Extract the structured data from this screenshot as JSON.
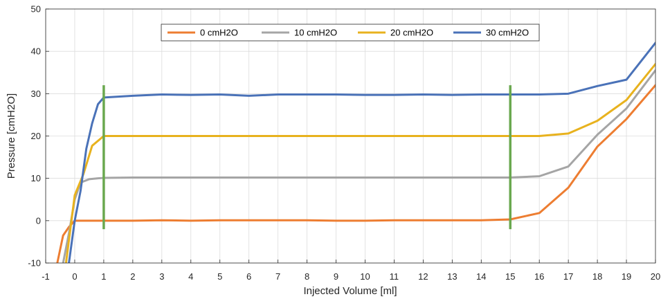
{
  "chart_data": {
    "type": "line",
    "title": "",
    "xlabel": "Injected Volume [ml]",
    "ylabel": "Pressure [cmH2O]",
    "xlim": [
      -1,
      20
    ],
    "ylim": [
      -10,
      50
    ],
    "xticks": [
      -1,
      0,
      1,
      2,
      3,
      4,
      5,
      6,
      7,
      8,
      9,
      10,
      11,
      12,
      13,
      14,
      15,
      16,
      17,
      18,
      19,
      20
    ],
    "yticks": [
      -10,
      0,
      10,
      20,
      30,
      40,
      50
    ],
    "xtick_labels": [
      "-1",
      "0",
      "1",
      "2",
      "3",
      "4",
      "5",
      "6",
      "7",
      "8",
      "9",
      "10",
      "11",
      "12",
      "13",
      "14",
      "15",
      "16",
      "17",
      "18",
      "19",
      "20"
    ],
    "ytick_labels": [
      "-10",
      "0",
      "10",
      "20",
      "30",
      "40",
      "50"
    ],
    "grid": true,
    "legend_position": "top-center",
    "series": [
      {
        "name": "0 cmH2O",
        "color": "#ed7d31",
        "points": [
          [
            -0.6,
            -10
          ],
          [
            -0.4,
            -3.5
          ],
          [
            -0.2,
            -1.5
          ],
          [
            0,
            0
          ],
          [
            1,
            0
          ],
          [
            2,
            0
          ],
          [
            3,
            0.1
          ],
          [
            4,
            0
          ],
          [
            5,
            0.1
          ],
          [
            6,
            0.1
          ],
          [
            7,
            0.1
          ],
          [
            8,
            0.1
          ],
          [
            9,
            0
          ],
          [
            10,
            0
          ],
          [
            11,
            0.1
          ],
          [
            12,
            0.1
          ],
          [
            13,
            0.1
          ],
          [
            14,
            0.1
          ],
          [
            15,
            0.3
          ],
          [
            16,
            1.8
          ],
          [
            17,
            7.8
          ],
          [
            18,
            17.5
          ],
          [
            19,
            24
          ],
          [
            20,
            32
          ]
        ]
      },
      {
        "name": "10 cmH2O",
        "color": "#a5a5a5",
        "points": [
          [
            -0.4,
            -10
          ],
          [
            -0.2,
            -3
          ],
          [
            0,
            5
          ],
          [
            0.2,
            9
          ],
          [
            0.5,
            9.8
          ],
          [
            0.8,
            10
          ],
          [
            1,
            10.1
          ],
          [
            2,
            10.2
          ],
          [
            3,
            10.2
          ],
          [
            4,
            10.2
          ],
          [
            5,
            10.2
          ],
          [
            6,
            10.2
          ],
          [
            7,
            10.2
          ],
          [
            8,
            10.2
          ],
          [
            9,
            10.2
          ],
          [
            10,
            10.2
          ],
          [
            11,
            10.2
          ],
          [
            12,
            10.2
          ],
          [
            13,
            10.2
          ],
          [
            14,
            10.2
          ],
          [
            15,
            10.2
          ],
          [
            16,
            10.5
          ],
          [
            17,
            12.8
          ],
          [
            18,
            20.3
          ],
          [
            19,
            26.5
          ],
          [
            20,
            35.5
          ]
        ]
      },
      {
        "name": "20 cmH2O",
        "color": "#e8b21e",
        "points": [
          [
            -0.3,
            -10
          ],
          [
            0,
            6
          ],
          [
            0.3,
            11
          ],
          [
            0.6,
            17.7
          ],
          [
            1,
            20
          ],
          [
            2,
            20
          ],
          [
            3,
            20
          ],
          [
            4,
            20
          ],
          [
            5,
            20
          ],
          [
            6,
            20
          ],
          [
            7,
            20
          ],
          [
            8,
            20
          ],
          [
            9,
            20
          ],
          [
            10,
            20
          ],
          [
            11,
            20
          ],
          [
            12,
            20
          ],
          [
            13,
            20
          ],
          [
            14,
            20
          ],
          [
            15,
            20
          ],
          [
            16,
            20
          ],
          [
            17,
            20.6
          ],
          [
            18,
            23.6
          ],
          [
            19,
            28.5
          ],
          [
            20,
            37
          ]
        ]
      },
      {
        "name": "30 cmH2O",
        "color": "#4a72b8",
        "points": [
          [
            -0.2,
            -10
          ],
          [
            0,
            0
          ],
          [
            0.2,
            7
          ],
          [
            0.4,
            17
          ],
          [
            0.6,
            23
          ],
          [
            0.8,
            27.5
          ],
          [
            1,
            29.1
          ],
          [
            2,
            29.5
          ],
          [
            3,
            29.8
          ],
          [
            4,
            29.7
          ],
          [
            5,
            29.8
          ],
          [
            6,
            29.5
          ],
          [
            7,
            29.8
          ],
          [
            8,
            29.8
          ],
          [
            9,
            29.8
          ],
          [
            10,
            29.7
          ],
          [
            11,
            29.7
          ],
          [
            12,
            29.8
          ],
          [
            13,
            29.7
          ],
          [
            14,
            29.8
          ],
          [
            15,
            29.8
          ],
          [
            16,
            29.8
          ],
          [
            17,
            30
          ],
          [
            18,
            31.8
          ],
          [
            19,
            33.3
          ],
          [
            20,
            42
          ]
        ]
      }
    ],
    "markers": [
      {
        "x": 1,
        "y_range": [
          -2,
          32
        ],
        "color": "#6aa84f"
      },
      {
        "x": 15,
        "y_range": [
          -2,
          32
        ],
        "color": "#6aa84f"
      }
    ]
  }
}
